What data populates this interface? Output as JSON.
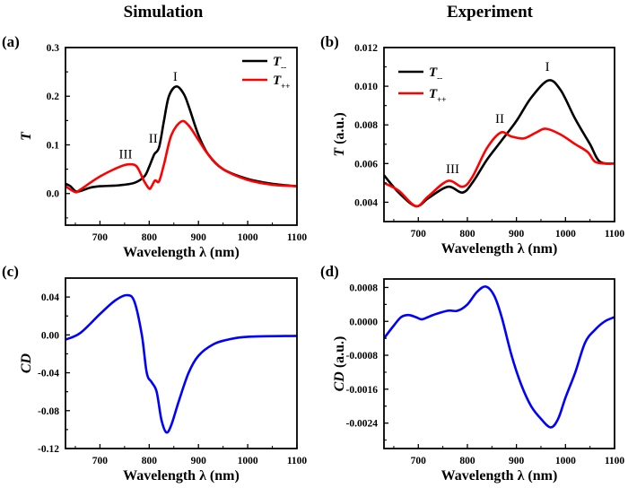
{
  "figure_titles": [
    "Simulation",
    "Experiment"
  ],
  "chart_data": [
    {
      "panel": "(a)",
      "type": "line",
      "xlabel": "Wavelength λ (nm)",
      "ylabel": "T",
      "ylabel_italic": "T",
      "ylabel_rest": "",
      "xlim": [
        630,
        1100
      ],
      "ylim": [
        -0.065,
        0.3
      ],
      "xticks": [
        700,
        800,
        900,
        1000,
        1100
      ],
      "xtick_labels": [
        "700",
        "800",
        "900",
        "1000",
        "1100"
      ],
      "yticks": [
        0.0,
        0.1,
        0.2,
        0.3
      ],
      "ytick_labels": [
        "0.0",
        "0.1",
        "0.2",
        "0.3"
      ],
      "grid": false,
      "legend": "top-right",
      "series": [
        {
          "name": "T--",
          "name_main": "T",
          "name_sub": "--",
          "color": "#000000",
          "x": [
            630,
            640,
            650,
            660,
            680,
            700,
            740,
            770,
            790,
            800,
            810,
            820,
            830,
            840,
            855,
            870,
            880,
            900,
            920,
            950,
            1000,
            1050,
            1100
          ],
          "y": [
            0.02,
            0.015,
            0.005,
            0.005,
            0.012,
            0.015,
            0.017,
            0.022,
            0.035,
            0.055,
            0.08,
            0.095,
            0.15,
            0.2,
            0.22,
            0.205,
            0.18,
            0.12,
            0.08,
            0.05,
            0.03,
            0.02,
            0.015
          ]
        },
        {
          "name": "T++",
          "name_main": "T",
          "name_sub": "++",
          "color": "#ff0000",
          "x": [
            630,
            650,
            660,
            700,
            740,
            760,
            775,
            790,
            800,
            805,
            812,
            820,
            830,
            845,
            865,
            880,
            900,
            920,
            950,
            1000,
            1050,
            1100
          ],
          "y": [
            0.015,
            0.003,
            0.008,
            0.035,
            0.055,
            0.06,
            0.055,
            0.025,
            0.01,
            0.015,
            0.027,
            0.025,
            0.06,
            0.12,
            0.148,
            0.14,
            0.11,
            0.08,
            0.05,
            0.028,
            0.018,
            0.015
          ]
        }
      ],
      "annotations": [
        {
          "text": "I",
          "x": 853,
          "y": 0.232
        },
        {
          "text": "II",
          "x": 808,
          "y": 0.105
        },
        {
          "text": "III",
          "x": 752,
          "y": 0.072
        }
      ]
    },
    {
      "panel": "(b)",
      "type": "line",
      "xlabel": "Wavelength λ (nm)",
      "ylabel": "T (a.u.)",
      "ylabel_italic": "T",
      "ylabel_rest": " (a.u.)",
      "xlim": [
        630,
        1100
      ],
      "ylim": [
        0.003,
        0.012
      ],
      "xticks": [
        700,
        800,
        900,
        1000,
        1100
      ],
      "xtick_labels": [
        "700",
        "800",
        "900",
        "1000",
        "1100"
      ],
      "yticks": [
        0.004,
        0.006,
        0.008,
        0.01,
        0.012
      ],
      "ytick_labels": [
        "0.004",
        "0.006",
        "0.008",
        "0.010",
        "0.012"
      ],
      "grid": false,
      "legend": "top-left",
      "series": [
        {
          "name": "T--",
          "name_main": "T",
          "name_sub": "--",
          "color": "#000000",
          "x": [
            630,
            660,
            695,
            720,
            760,
            790,
            810,
            840,
            870,
            900,
            930,
            965,
            990,
            1020,
            1050,
            1070,
            1100
          ],
          "y": [
            0.0054,
            0.0045,
            0.0038,
            0.0042,
            0.0048,
            0.0045,
            0.005,
            0.0062,
            0.0072,
            0.0082,
            0.0094,
            0.0103,
            0.0098,
            0.0083,
            0.007,
            0.0061,
            0.006
          ]
        },
        {
          "name": "T++",
          "name_main": "T",
          "name_sub": "++",
          "color": "#ff0000",
          "x": [
            630,
            660,
            695,
            720,
            760,
            790,
            810,
            840,
            868,
            890,
            915,
            940,
            960,
            990,
            1020,
            1045,
            1060,
            1080,
            1100
          ],
          "y": [
            0.005,
            0.0046,
            0.0038,
            0.0043,
            0.0051,
            0.0048,
            0.0053,
            0.0068,
            0.0076,
            0.0074,
            0.0073,
            0.0076,
            0.0078,
            0.0075,
            0.007,
            0.0066,
            0.0061,
            0.006,
            0.006
          ]
        }
      ],
      "annotations": [
        {
          "text": "I",
          "x": 963,
          "y": 0.0108
        },
        {
          "text": "II",
          "x": 866,
          "y": 0.0081
        },
        {
          "text": "III",
          "x": 770,
          "y": 0.0055
        }
      ]
    },
    {
      "panel": "(c)",
      "type": "line",
      "xlabel": "Wavelength λ (nm)",
      "ylabel": "CD",
      "ylabel_italic": "CD",
      "ylabel_rest": "",
      "xlim": [
        630,
        1100
      ],
      "ylim": [
        -0.12,
        0.06
      ],
      "xticks": [
        700,
        800,
        900,
        1000,
        1100
      ],
      "xtick_labels": [
        "700",
        "800",
        "900",
        "1000",
        "1100"
      ],
      "yticks": [
        -0.12,
        -0.08,
        -0.04,
        0.0,
        0.04
      ],
      "ytick_labels": [
        "-0.12",
        "-0.08",
        "-0.04",
        "0.00",
        "0.04"
      ],
      "grid": false,
      "series": [
        {
          "color": "#0000ff",
          "x": [
            630,
            660,
            700,
            730,
            755,
            770,
            785,
            795,
            805,
            815,
            825,
            835,
            845,
            860,
            880,
            900,
            930,
            960,
            1000,
            1100
          ],
          "y": [
            -0.005,
            0.002,
            0.022,
            0.036,
            0.042,
            0.035,
            0.0,
            -0.04,
            -0.05,
            -0.06,
            -0.09,
            -0.103,
            -0.095,
            -0.07,
            -0.04,
            -0.022,
            -0.01,
            -0.005,
            -0.002,
            -0.001
          ]
        }
      ],
      "annotations": []
    },
    {
      "panel": "(d)",
      "type": "line",
      "xlabel": "Wavelength λ (nm)",
      "ylabel": "CD (a.u.)",
      "ylabel_italic": "CD",
      "ylabel_rest": " (a.u.)",
      "xlim": [
        630,
        1100
      ],
      "ylim": [
        -0.003,
        0.001
      ],
      "xticks": [
        700,
        800,
        900,
        1000,
        1100
      ],
      "xtick_labels": [
        "700",
        "800",
        "900",
        "1000",
        "1100"
      ],
      "yticks": [
        -0.0024,
        -0.0016,
        -0.0008,
        0.0,
        0.0008
      ],
      "ytick_labels": [
        "-0.0024",
        "-0.0016",
        "-0.0008",
        "0.0000",
        "0.0008"
      ],
      "grid": false,
      "series": [
        {
          "color": "#0000ff",
          "x": [
            630,
            650,
            665,
            680,
            695,
            708,
            730,
            760,
            780,
            800,
            820,
            838,
            855,
            870,
            890,
            910,
            930,
            950,
            970,
            985,
            1000,
            1020,
            1040,
            1060,
            1080,
            1100
          ],
          "y": [
            -0.0004,
            -0.0001,
            0.0001,
            0.00015,
            0.0001,
            5e-05,
            0.00015,
            0.00025,
            0.00025,
            0.0004,
            0.0007,
            0.00082,
            0.0006,
            0.0001,
            -0.0008,
            -0.0015,
            -0.002,
            -0.0023,
            -0.0025,
            -0.0023,
            -0.0018,
            -0.0012,
            -0.0005,
            -0.0002,
            0.0,
            0.0001
          ]
        }
      ],
      "annotations": []
    }
  ]
}
